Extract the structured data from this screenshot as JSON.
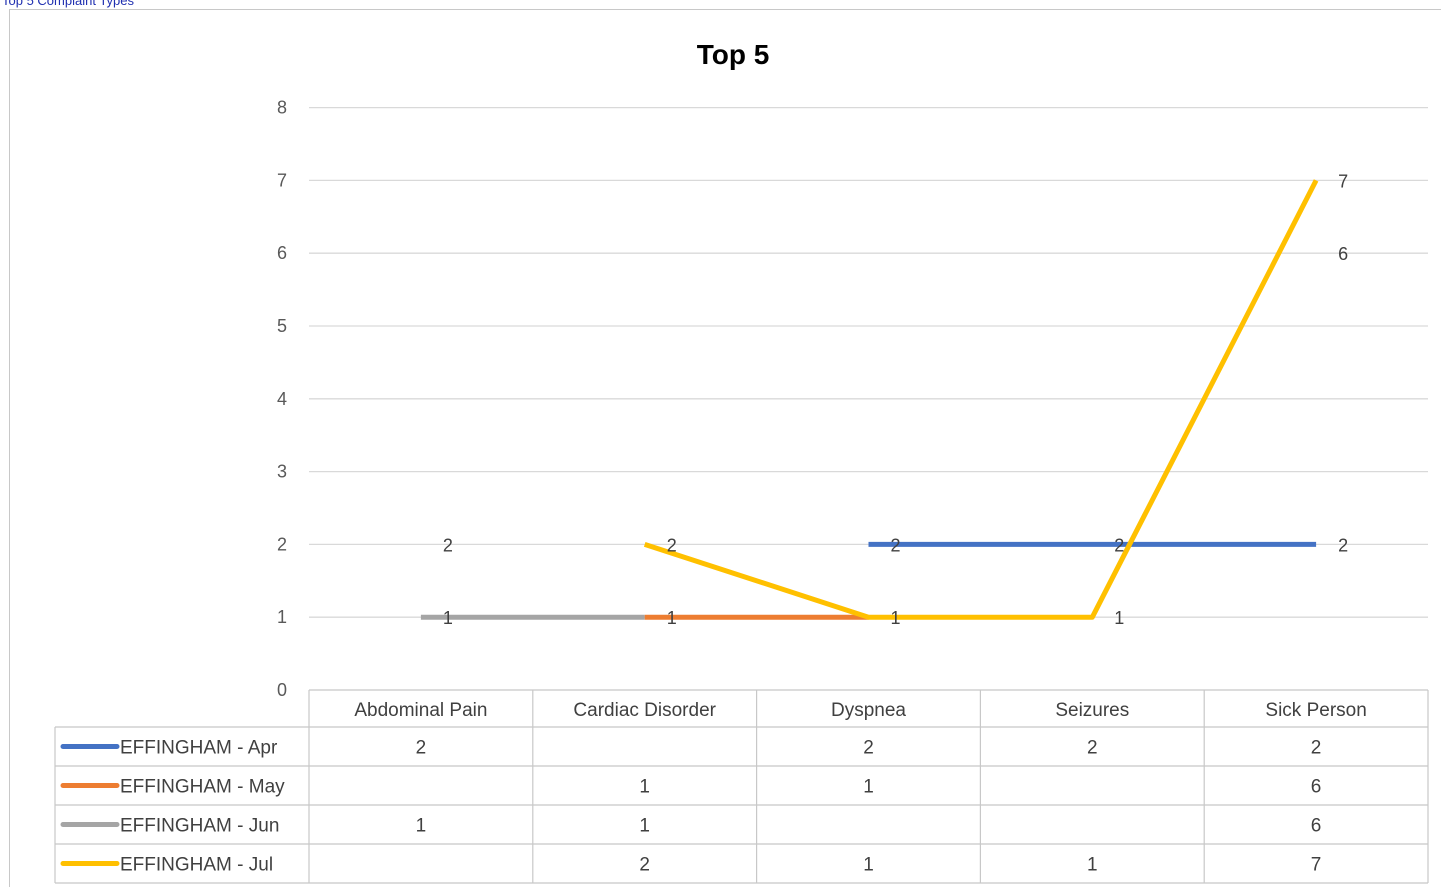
{
  "header": {
    "text": "Top 5 Complaint Types"
  },
  "chart_data": {
    "type": "line",
    "title": "Top 5",
    "xlabel": "",
    "ylabel": "",
    "ylim": [
      0,
      8
    ],
    "yticks": [
      0,
      1,
      2,
      3,
      4,
      5,
      6,
      7,
      8
    ],
    "grid": true,
    "legend": "data-table",
    "categories": [
      "Abdominal Pain",
      "Cardiac Disorder",
      "Dyspnea",
      "Seizures",
      "Sick Person"
    ],
    "series": [
      {
        "name": "EFFINGHAM - Apr",
        "color": "#4472c4",
        "values": [
          2,
          null,
          2,
          2,
          2
        ]
      },
      {
        "name": "EFFINGHAM - May",
        "color": "#ed7d31",
        "values": [
          null,
          1,
          1,
          null,
          6
        ]
      },
      {
        "name": "EFFINGHAM - Jun",
        "color": "#a5a5a5",
        "values": [
          1,
          1,
          null,
          null,
          6
        ]
      },
      {
        "name": "EFFINGHAM - Jul",
        "color": "#ffc000",
        "values": [
          null,
          2,
          1,
          1,
          7
        ]
      }
    ]
  }
}
